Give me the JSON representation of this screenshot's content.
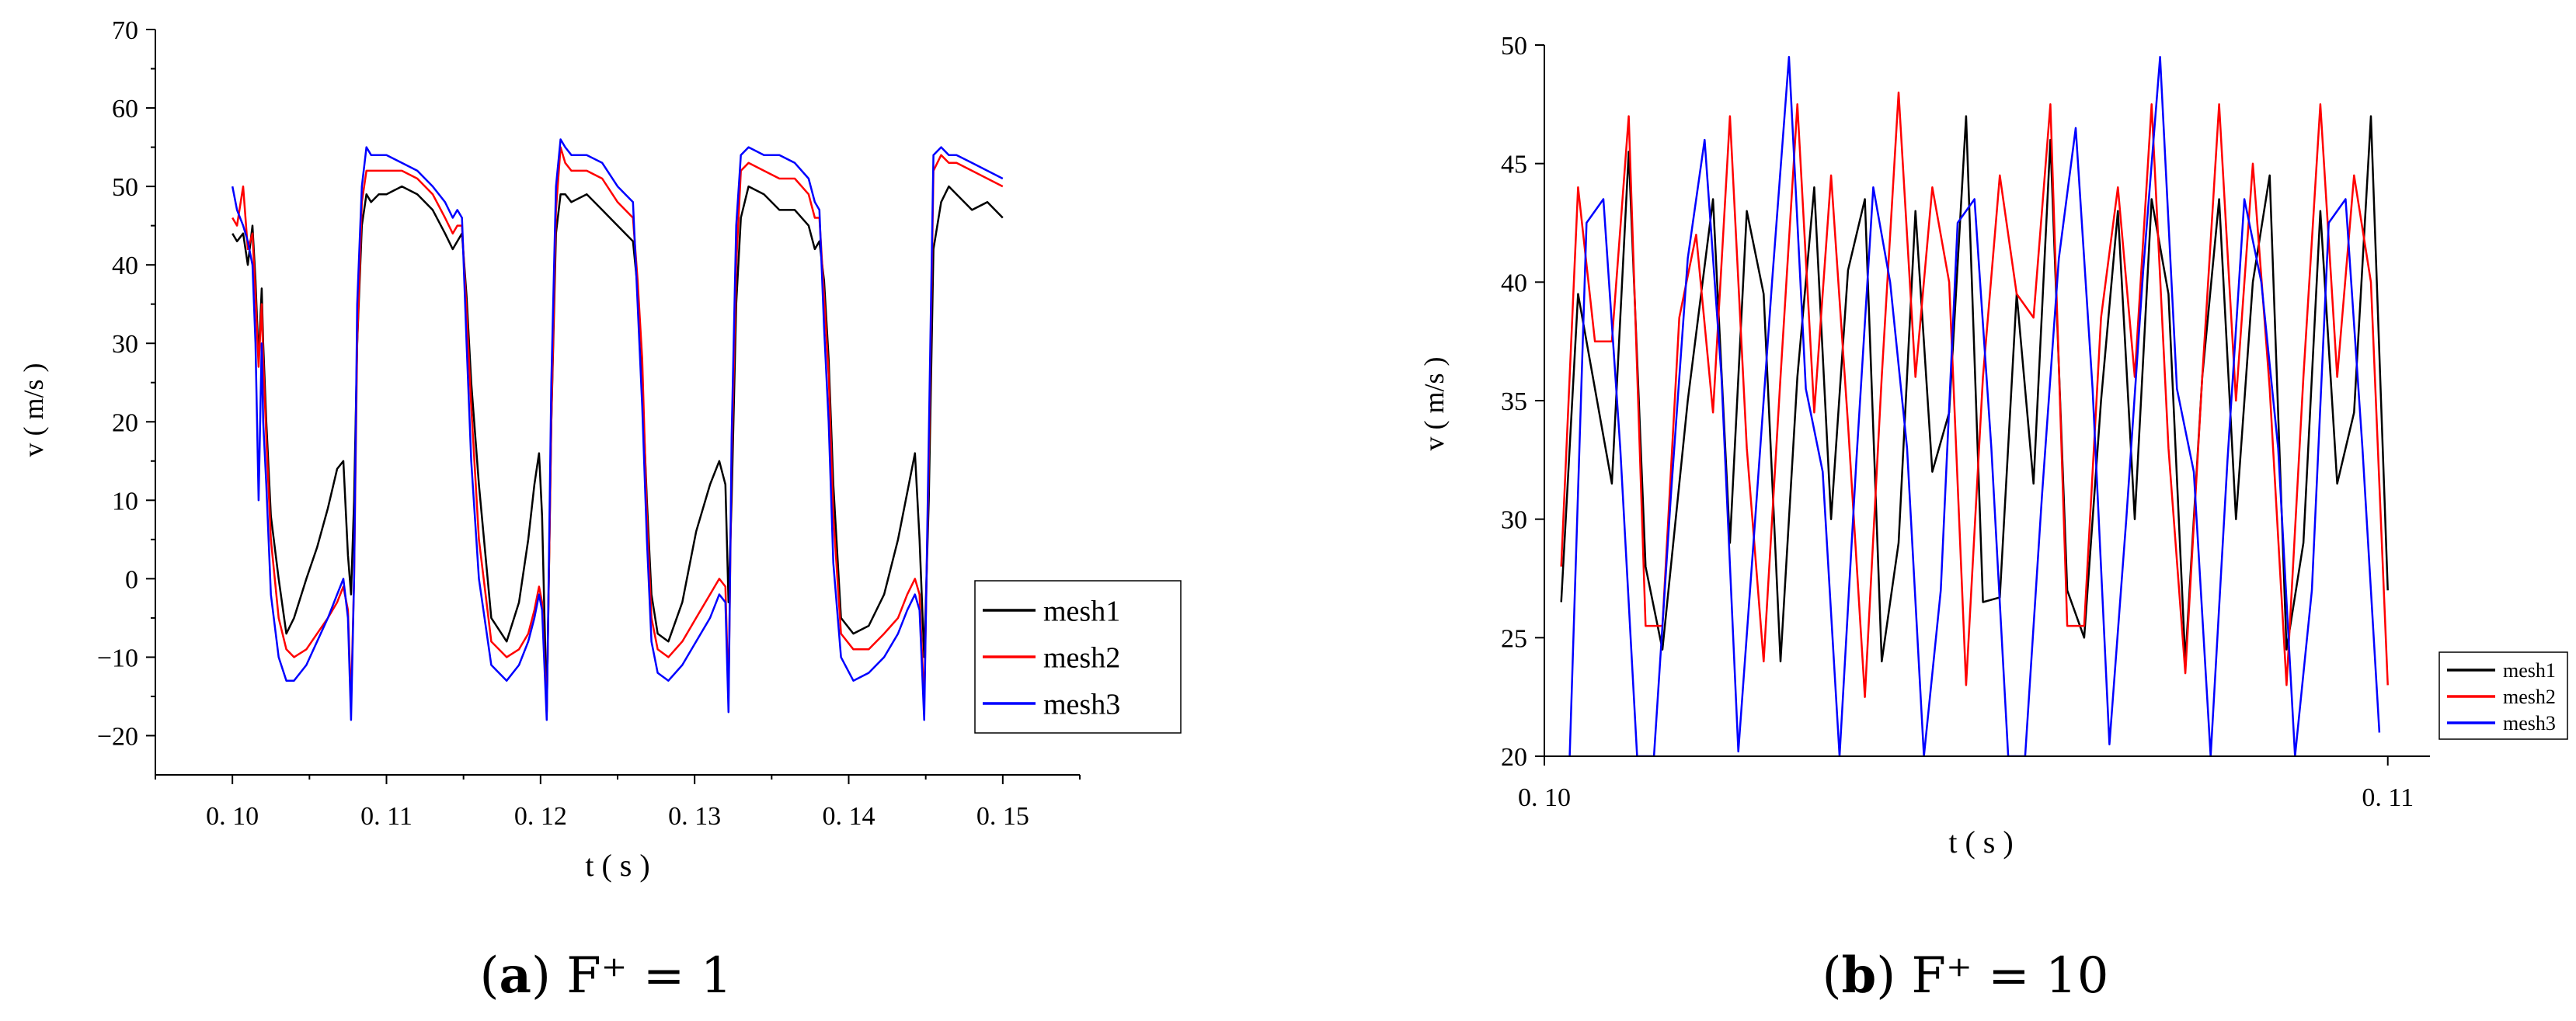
{
  "chart_data": [
    {
      "type": "line",
      "caption_letter": "a",
      "caption_text": "F⁺ = 1",
      "xlabel": "t ( s )",
      "ylabel": "v ( m/s )",
      "xlim": [
        0.095,
        0.155
      ],
      "ylim": [
        -25,
        70
      ],
      "xticks": [
        0.1,
        0.11,
        0.12,
        0.13,
        0.14,
        0.15
      ],
      "xtick_labels": [
        "0. 10",
        "0. 11",
        "0. 12",
        "0. 13",
        "0. 14",
        "0. 15"
      ],
      "yticks": [
        -20,
        -10,
        0,
        10,
        20,
        30,
        40,
        50,
        60,
        70
      ],
      "ytick_labels": [
        "−20",
        "−10",
        "0",
        "10",
        "20",
        "30",
        "40",
        "50",
        "60",
        "70"
      ],
      "legend": [
        "mesh1",
        "mesh2",
        "mesh3"
      ],
      "legend_position": "lower-right",
      "series": [
        {
          "name": "mesh1",
          "color": "#000000",
          "x": [
            0.1,
            0.1003,
            0.1007,
            0.101,
            0.1013,
            0.1015,
            0.1017,
            0.1019,
            0.102,
            0.1022,
            0.1025,
            0.103,
            0.1035,
            0.104,
            0.1048,
            0.1055,
            0.1062,
            0.1068,
            0.1072,
            0.1075,
            0.1077,
            0.1079,
            0.1081,
            0.1084,
            0.1087,
            0.109,
            0.1095,
            0.11,
            0.111,
            0.112,
            0.113,
            0.1138,
            0.1143,
            0.1146,
            0.1149,
            0.1152,
            0.1155,
            0.116,
            0.1168,
            0.1178,
            0.1186,
            0.1192,
            0.1196,
            0.1199,
            0.1201,
            0.1204,
            0.1207,
            0.121,
            0.1213,
            0.1216,
            0.122,
            0.123,
            0.124,
            0.125,
            0.126,
            0.1263,
            0.1266,
            0.1269,
            0.1272,
            0.1276,
            0.1283,
            0.1292,
            0.1301,
            0.131,
            0.1316,
            0.132,
            0.1322,
            0.1324,
            0.1327,
            0.133,
            0.1335,
            0.1345,
            0.1355,
            0.1365,
            0.1374,
            0.1378,
            0.1381,
            0.1384,
            0.1387,
            0.139,
            0.1395,
            0.1403,
            0.1413,
            0.1423,
            0.1432,
            0.1438,
            0.1443,
            0.1446,
            0.1449,
            0.1452,
            0.1455,
            0.146,
            0.1465,
            0.147,
            0.148,
            0.149,
            0.15
          ],
          "y": [
            44,
            43,
            44,
            40,
            45,
            38,
            28,
            37,
            30,
            20,
            8,
            0,
            -7,
            -5,
            0,
            4,
            9,
            14,
            15,
            3,
            -2,
            10,
            30,
            45,
            49,
            48,
            49,
            49,
            50,
            49,
            47,
            44,
            42,
            43,
            44,
            36,
            25,
            12,
            -5,
            -8,
            -3,
            5,
            12,
            16,
            8,
            -17,
            20,
            44,
            49,
            49,
            48,
            49,
            47,
            45,
            43,
            37,
            25,
            10,
            -2,
            -7,
            -8,
            -3,
            6,
            12,
            15,
            12,
            -3,
            10,
            35,
            46,
            50,
            49,
            47,
            47,
            45,
            42,
            43,
            38,
            28,
            12,
            -5,
            -7,
            -6,
            -2,
            5,
            11,
            16,
            5,
            -10,
            10,
            42,
            48,
            50,
            49,
            47,
            48,
            46
          ]
        },
        {
          "name": "mesh2",
          "color": "#ff0000",
          "x": [
            0.1,
            0.1003,
            0.1007,
            0.101,
            0.1013,
            0.1015,
            0.1017,
            0.1019,
            0.102,
            0.1022,
            0.1025,
            0.103,
            0.1035,
            0.104,
            0.1048,
            0.1055,
            0.1062,
            0.1068,
            0.1072,
            0.1075,
            0.1077,
            0.1079,
            0.1081,
            0.1084,
            0.1087,
            0.109,
            0.1095,
            0.11,
            0.111,
            0.112,
            0.113,
            0.1138,
            0.1143,
            0.1146,
            0.1149,
            0.1152,
            0.1155,
            0.116,
            0.1168,
            0.1178,
            0.1186,
            0.1192,
            0.1196,
            0.1199,
            0.1201,
            0.1204,
            0.1207,
            0.121,
            0.1213,
            0.1216,
            0.122,
            0.123,
            0.124,
            0.125,
            0.126,
            0.1263,
            0.1266,
            0.1269,
            0.1272,
            0.1276,
            0.1283,
            0.1292,
            0.1301,
            0.131,
            0.1316,
            0.132,
            0.1322,
            0.1324,
            0.1327,
            0.133,
            0.1335,
            0.1345,
            0.1355,
            0.1365,
            0.1374,
            0.1378,
            0.1381,
            0.1384,
            0.1387,
            0.139,
            0.1395,
            0.1403,
            0.1413,
            0.1423,
            0.1432,
            0.1438,
            0.1443,
            0.1446,
            0.1449,
            0.1452,
            0.1455,
            0.146,
            0.1465,
            0.147,
            0.148,
            0.149,
            0.15
          ],
          "y": [
            46,
            45,
            50,
            42,
            44,
            36,
            27,
            35,
            28,
            18,
            5,
            -5,
            -9,
            -10,
            -9,
            -7,
            -5,
            -3,
            -1,
            -4,
            -16,
            0,
            30,
            48,
            52,
            52,
            52,
            52,
            52,
            51,
            49,
            46,
            44,
            45,
            45,
            34,
            22,
            5,
            -8,
            -10,
            -9,
            -7,
            -4,
            -1,
            -3,
            -17,
            20,
            47,
            55,
            53,
            52,
            52,
            51,
            48,
            46,
            38,
            28,
            8,
            -5,
            -9,
            -10,
            -8,
            -5,
            -2,
            0,
            -1,
            -15,
            15,
            40,
            52,
            53,
            52,
            51,
            51,
            49,
            46,
            46,
            36,
            26,
            8,
            -7,
            -9,
            -9,
            -7,
            -5,
            -2,
            0,
            -2,
            -16,
            15,
            52,
            54,
            53,
            53,
            52,
            51,
            50
          ]
        },
        {
          "name": "mesh3",
          "color": "#0000ff",
          "x": [
            0.1,
            0.1003,
            0.1007,
            0.101,
            0.1013,
            0.1015,
            0.1017,
            0.1019,
            0.102,
            0.1022,
            0.1025,
            0.103,
            0.1035,
            0.104,
            0.1048,
            0.1055,
            0.1062,
            0.1068,
            0.1072,
            0.1075,
            0.1077,
            0.1079,
            0.1081,
            0.1084,
            0.1087,
            0.109,
            0.1095,
            0.11,
            0.111,
            0.112,
            0.113,
            0.1138,
            0.1143,
            0.1146,
            0.1149,
            0.1152,
            0.1155,
            0.116,
            0.1168,
            0.1178,
            0.1186,
            0.1192,
            0.1196,
            0.1199,
            0.1201,
            0.1204,
            0.1207,
            0.121,
            0.1213,
            0.1216,
            0.122,
            0.123,
            0.124,
            0.125,
            0.126,
            0.1263,
            0.1266,
            0.1269,
            0.1272,
            0.1276,
            0.1283,
            0.1292,
            0.1301,
            0.131,
            0.1316,
            0.132,
            0.1322,
            0.1324,
            0.1327,
            0.133,
            0.1335,
            0.1345,
            0.1355,
            0.1365,
            0.1374,
            0.1378,
            0.1381,
            0.1384,
            0.1387,
            0.139,
            0.1395,
            0.1403,
            0.1413,
            0.1423,
            0.1432,
            0.1438,
            0.1443,
            0.1446,
            0.1449,
            0.1452,
            0.1455,
            0.146,
            0.1465,
            0.147,
            0.148,
            0.149,
            0.15
          ],
          "y": [
            50,
            47,
            45,
            43,
            40,
            30,
            10,
            30,
            20,
            12,
            -2,
            -10,
            -13,
            -13,
            -11,
            -8,
            -5,
            -2,
            0,
            -5,
            -18,
            0,
            35,
            50,
            55,
            54,
            54,
            54,
            53,
            52,
            50,
            48,
            46,
            47,
            46,
            30,
            15,
            0,
            -11,
            -13,
            -11,
            -8,
            -5,
            -2,
            -4,
            -18,
            25,
            50,
            56,
            55,
            54,
            54,
            53,
            50,
            48,
            35,
            22,
            5,
            -8,
            -12,
            -13,
            -11,
            -8,
            -5,
            -2,
            -3,
            -17,
            18,
            45,
            54,
            55,
            54,
            54,
            53,
            51,
            48,
            47,
            32,
            20,
            2,
            -10,
            -13,
            -12,
            -10,
            -7,
            -4,
            -2,
            -4,
            -18,
            18,
            54,
            55,
            54,
            54,
            53,
            52,
            51
          ]
        }
      ]
    },
    {
      "type": "line",
      "caption_letter": "b",
      "caption_text": "F⁺ = 10",
      "xlabel": "t ( s )",
      "ylabel": "v ( m/s )",
      "xlim": [
        0.1,
        0.1105
      ],
      "ylim": [
        20,
        50
      ],
      "xticks": [
        0.1,
        0.11
      ],
      "xtick_labels": [
        "0. 10",
        "0. 11"
      ],
      "yticks": [
        20,
        25,
        30,
        35,
        40,
        45,
        50
      ],
      "ytick_labels": [
        "20",
        "25",
        "30",
        "35",
        "40",
        "45",
        "50"
      ],
      "legend": [
        "mesh1",
        "mesh2",
        "mesh3"
      ],
      "legend_position": "lower-right",
      "series": [
        {
          "name": "mesh1",
          "color": "#000000",
          "x": [
            0.1002,
            0.1004,
            0.1008,
            0.101,
            0.1012,
            0.1014,
            0.1017,
            0.102,
            0.1022,
            0.1024,
            0.1026,
            0.1028,
            0.103,
            0.1032,
            0.1034,
            0.1036,
            0.1038,
            0.104,
            0.1042,
            0.1044,
            0.1046,
            0.1048,
            0.105,
            0.1052,
            0.1054,
            0.1056,
            0.1058,
            0.106,
            0.1062,
            0.1064,
            0.1066,
            0.1068,
            0.107,
            0.1072,
            0.1074,
            0.1076,
            0.1078,
            0.108,
            0.1082,
            0.1084,
            0.1086,
            0.1088,
            0.109,
            0.1092,
            0.1094,
            0.1096,
            0.1098,
            0.11
          ],
          "y": [
            26.5,
            39.5,
            31.5,
            45.5,
            28,
            24.5,
            35,
            43.5,
            29,
            43,
            39.5,
            24,
            36,
            44,
            30,
            40.5,
            43.5,
            24,
            29,
            43,
            32,
            34.5,
            47,
            26.5,
            26.7,
            39.5,
            31.5,
            46,
            27,
            25,
            35,
            43,
            30,
            43.5,
            39.5,
            24,
            36,
            43.5,
            30,
            40,
            44.5,
            24.5,
            29,
            43,
            31.5,
            34.5,
            47,
            27
          ]
        },
        {
          "name": "mesh2",
          "color": "#ff0000",
          "x": [
            0.1002,
            0.1004,
            0.1006,
            0.1008,
            0.101,
            0.1012,
            0.1014,
            0.1016,
            0.1018,
            0.102,
            0.1022,
            0.1024,
            0.1026,
            0.1028,
            0.103,
            0.1032,
            0.1034,
            0.1036,
            0.1038,
            0.104,
            0.1042,
            0.1044,
            0.1046,
            0.1048,
            0.105,
            0.1052,
            0.1054,
            0.1056,
            0.1058,
            0.106,
            0.1062,
            0.1064,
            0.1066,
            0.1068,
            0.107,
            0.1072,
            0.1074,
            0.1076,
            0.1078,
            0.108,
            0.1082,
            0.1084,
            0.1086,
            0.1088,
            0.109,
            0.1092,
            0.1094,
            0.1096,
            0.1098,
            0.11
          ],
          "y": [
            28,
            44,
            37.5,
            37.5,
            47,
            25.5,
            25.5,
            38.5,
            42,
            34.5,
            47,
            33,
            24,
            36,
            47.5,
            34.5,
            44.5,
            34,
            22.5,
            36,
            48,
            36,
            44,
            40,
            23,
            36,
            44.5,
            39.5,
            38.5,
            47.5,
            25.5,
            25.5,
            38.5,
            44,
            36,
            47.5,
            33,
            23.5,
            36,
            47.5,
            35,
            45,
            35.5,
            23,
            36,
            47.5,
            36,
            44.5,
            40,
            23
          ]
        },
        {
          "name": "mesh3",
          "color": "#0000ff",
          "x": [
            0.1003,
            0.1005,
            0.1007,
            0.1009,
            0.1011,
            0.1013,
            0.1015,
            0.1017,
            0.1019,
            0.1021,
            0.1023,
            0.1025,
            0.1027,
            0.1029,
            0.1031,
            0.1033,
            0.1035,
            0.1037,
            0.1039,
            0.1041,
            0.1043,
            0.1045,
            0.1047,
            0.1049,
            0.1051,
            0.1053,
            0.1055,
            0.1057,
            0.1059,
            0.1061,
            0.1063,
            0.1065,
            0.1067,
            0.1069,
            0.1071,
            0.1073,
            0.1075,
            0.1077,
            0.1079,
            0.1081,
            0.1083,
            0.1085,
            0.1087,
            0.1089,
            0.1091,
            0.1093,
            0.1095,
            0.1097,
            0.1099
          ],
          "y": [
            20,
            42.5,
            43.5,
            33,
            20,
            20,
            31,
            41,
            46,
            36,
            20.2,
            30,
            40,
            49.5,
            35.5,
            32,
            20,
            32.5,
            44,
            40,
            33,
            20,
            27,
            42.5,
            43.5,
            33,
            20,
            20,
            31,
            41,
            46.5,
            35.5,
            20.5,
            30,
            40.5,
            49.5,
            35.5,
            32,
            20,
            32.5,
            43.5,
            40,
            33,
            20,
            27,
            42.5,
            43.5,
            33,
            21
          ]
        }
      ]
    }
  ]
}
